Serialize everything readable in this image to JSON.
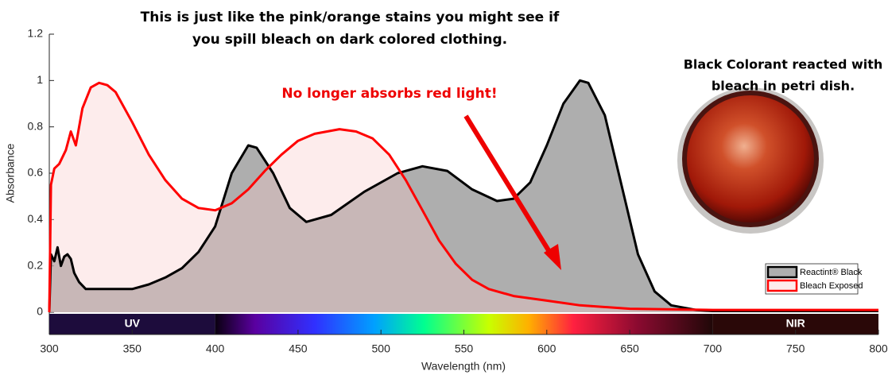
{
  "chart_data": {
    "type": "area",
    "title_lines": [
      "This is just like the pink/orange stains you might see if",
      "you spill bleach on dark colored clothing."
    ],
    "annotation": "No longer absorbs red light!",
    "side_note_lines": [
      "Black Colorant reacted with",
      "bleach in petri dish."
    ],
    "x_label": "Wavelength (nm)",
    "y_label": "Absorbance",
    "xlim": [
      300,
      800
    ],
    "ylim": [
      0,
      1.2
    ],
    "xticks": [
      300,
      350,
      400,
      450,
      500,
      550,
      600,
      650,
      700,
      750,
      800
    ],
    "yticks": [
      0,
      0.2,
      0.4,
      0.6,
      0.8,
      1,
      1.2
    ],
    "grid": false,
    "legend": "lower right",
    "bands": [
      {
        "label": "UV",
        "start": 300,
        "end": 400
      },
      {
        "label": "NIR",
        "start": 700,
        "end": 800
      }
    ],
    "series": [
      {
        "name": "Reactint® Black",
        "color": "#000000",
        "fill": "#8c8c8c",
        "x": [
          300,
          301,
          303,
          305,
          307,
          309,
          311,
          313,
          315,
          318,
          322,
          330,
          350,
          360,
          370,
          380,
          390,
          400,
          410,
          420,
          425,
          435,
          445,
          455,
          470,
          490,
          510,
          525,
          540,
          555,
          570,
          580,
          590,
          600,
          610,
          620,
          625,
          635,
          645,
          655,
          665,
          675,
          690,
          700,
          750,
          800
        ],
        "values": [
          0,
          0.25,
          0.22,
          0.28,
          0.2,
          0.24,
          0.25,
          0.23,
          0.17,
          0.13,
          0.1,
          0.1,
          0.1,
          0.12,
          0.15,
          0.19,
          0.26,
          0.37,
          0.6,
          0.72,
          0.71,
          0.6,
          0.45,
          0.39,
          0.42,
          0.52,
          0.6,
          0.63,
          0.61,
          0.53,
          0.48,
          0.49,
          0.56,
          0.72,
          0.9,
          1.0,
          0.99,
          0.85,
          0.55,
          0.25,
          0.09,
          0.03,
          0.01,
          0.005,
          0.005,
          0.005
        ]
      },
      {
        "name": "Bleach Exposed",
        "color": "#ff0000",
        "fill": "#f8c8c8",
        "x": [
          300,
          301,
          303,
          306,
          310,
          313,
          316,
          318,
          320,
          325,
          330,
          335,
          340,
          350,
          360,
          370,
          380,
          390,
          400,
          410,
          420,
          430,
          440,
          450,
          460,
          475,
          485,
          495,
          505,
          515,
          525,
          535,
          545,
          555,
          565,
          580,
          600,
          620,
          650,
          700,
          750,
          800
        ],
        "values": [
          0,
          0.55,
          0.62,
          0.64,
          0.7,
          0.78,
          0.72,
          0.8,
          0.88,
          0.97,
          0.99,
          0.98,
          0.95,
          0.82,
          0.68,
          0.57,
          0.49,
          0.45,
          0.44,
          0.47,
          0.53,
          0.61,
          0.68,
          0.74,
          0.77,
          0.79,
          0.78,
          0.75,
          0.68,
          0.57,
          0.44,
          0.31,
          0.21,
          0.14,
          0.1,
          0.07,
          0.05,
          0.03,
          0.015,
          0.01,
          0.01,
          0.01
        ]
      }
    ]
  }
}
